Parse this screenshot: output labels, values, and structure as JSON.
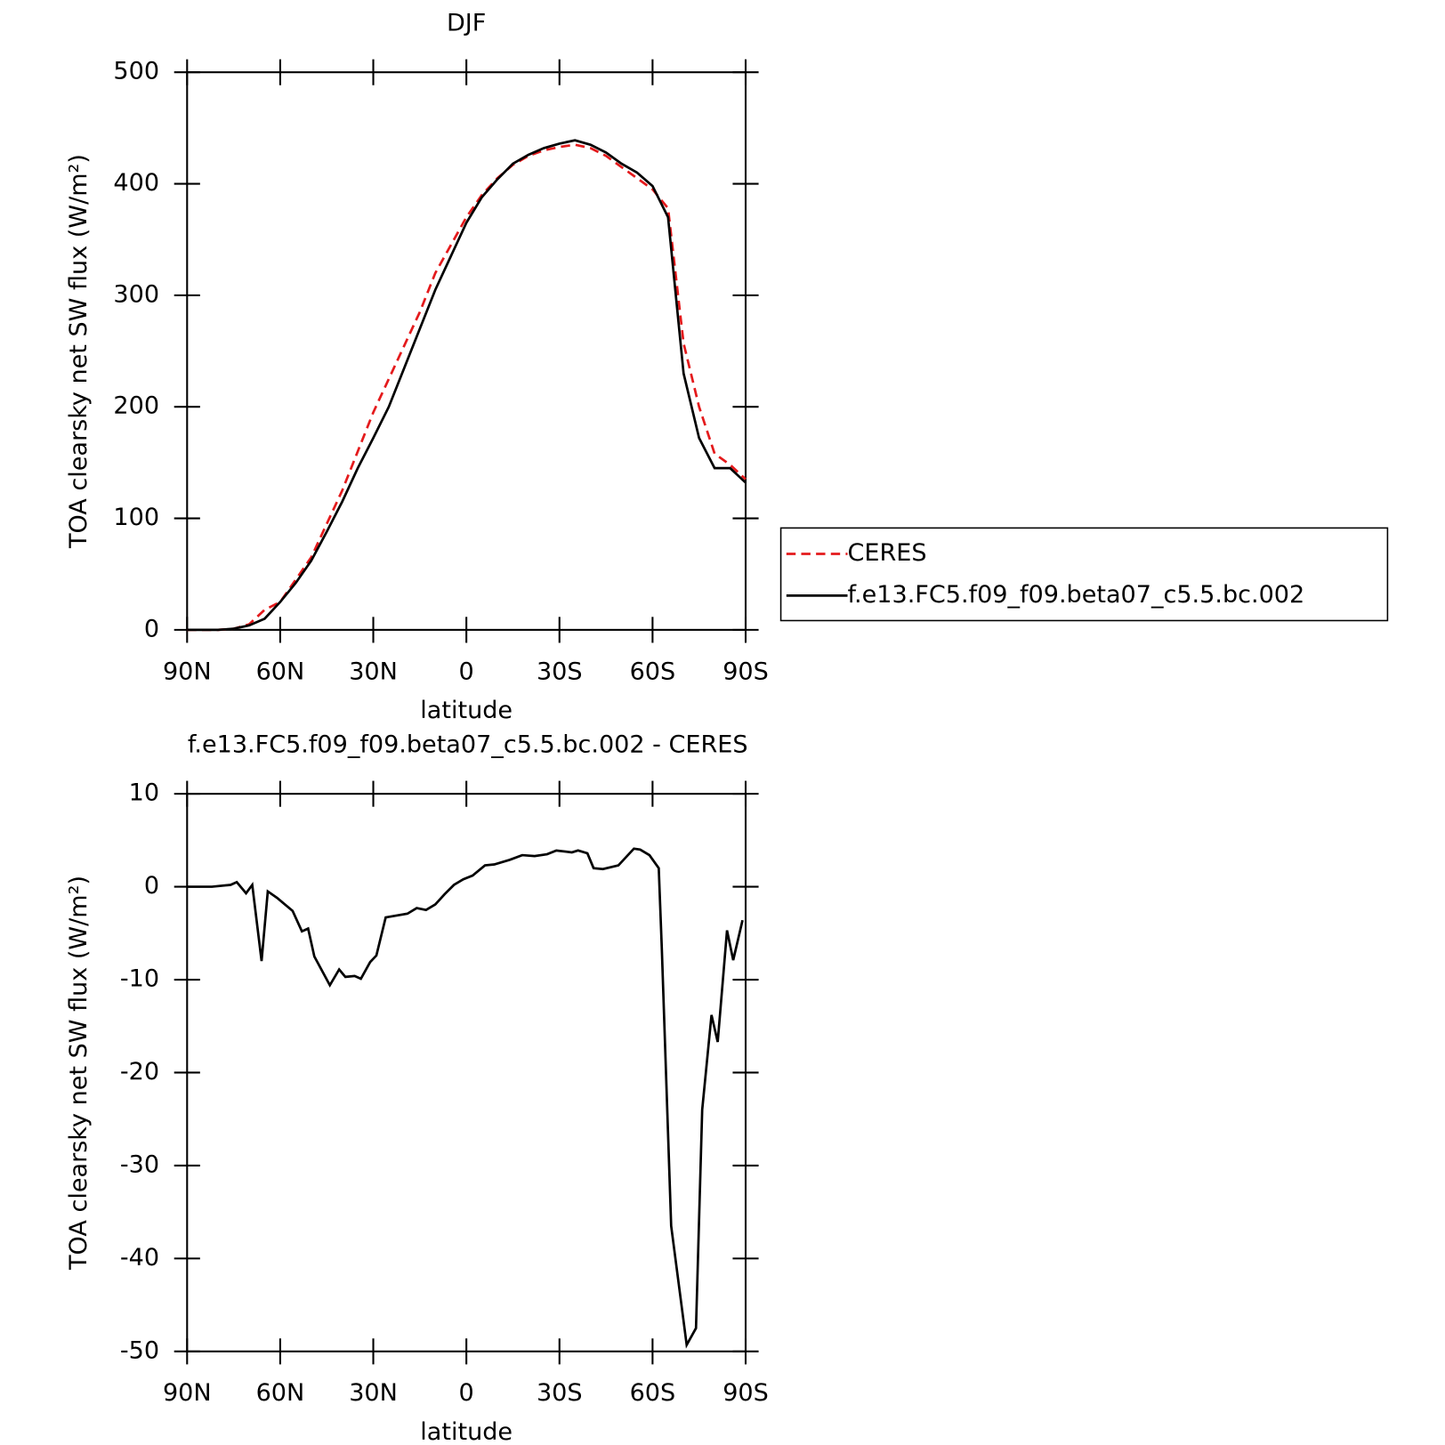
{
  "chart_data": [
    {
      "type": "line",
      "title": "DJF",
      "xlabel": "latitude",
      "ylabel": "TOA clearsky net SW flux (W/m²)",
      "xlim": [
        90,
        -90
      ],
      "xticks": [
        {
          "value": 90,
          "label": "90N"
        },
        {
          "value": 60,
          "label": "60N"
        },
        {
          "value": 30,
          "label": "30N"
        },
        0,
        {
          "value": -30,
          "label": "30S"
        },
        {
          "value": -60,
          "label": "60S"
        },
        {
          "value": -90,
          "label": "90S"
        }
      ],
      "ylim": [
        0,
        500
      ],
      "yticks": [
        0,
        100,
        200,
        300,
        400,
        500
      ],
      "x": [
        90,
        85,
        80,
        75,
        70,
        65,
        60,
        55,
        50,
        45,
        40,
        35,
        30,
        25,
        20,
        15,
        10,
        5,
        0,
        -5,
        -10,
        -15,
        -20,
        -25,
        -30,
        -35,
        -40,
        -45,
        -50,
        -55,
        -60,
        -65,
        -70,
        -75,
        -80,
        -85,
        -90
      ],
      "series": [
        {
          "name": "CERES",
          "color": "#e41a1c",
          "linestyle": "dashed",
          "values": [
            0,
            0,
            0,
            1,
            5,
            18,
            25,
            45,
            65,
            95,
            125,
            160,
            195,
            225,
            255,
            285,
            320,
            345,
            370,
            390,
            405,
            417,
            425,
            430,
            433,
            435,
            432,
            425,
            415,
            405,
            395,
            378,
            257,
            200,
            158,
            148,
            135
          ]
        },
        {
          "name": "f.e13.FC5.f09_f09.beta07_c5.5.bc.002",
          "color": "#000000",
          "linestyle": "solid",
          "values": [
            0,
            0,
            0,
            1,
            4,
            10,
            25,
            42,
            62,
            88,
            115,
            145,
            172,
            200,
            235,
            270,
            305,
            335,
            365,
            388,
            404,
            418,
            426,
            432,
            436,
            439,
            435,
            428,
            418,
            410,
            398,
            370,
            230,
            172,
            145,
            145,
            132
          ]
        }
      ],
      "legend": "right"
    },
    {
      "type": "line",
      "title": "f.e13.FC5.f09_f09.beta07_c5.5.bc.002 - CERES",
      "xlabel": "latitude",
      "ylabel": "TOA clearsky net SW flux (W/m²)",
      "xlim": [
        90,
        -90
      ],
      "xticks": [
        {
          "value": 90,
          "label": "90N"
        },
        {
          "value": 60,
          "label": "60N"
        },
        {
          "value": 30,
          "label": "30N"
        },
        0,
        {
          "value": -30,
          "label": "30S"
        },
        {
          "value": -60,
          "label": "60S"
        },
        {
          "value": -90,
          "label": "90S"
        }
      ],
      "ylim": [
        -50,
        10
      ],
      "yticks": [
        -50,
        -40,
        -30,
        -20,
        -10,
        0,
        10
      ],
      "x": [
        90,
        82,
        76,
        74,
        71,
        69,
        66,
        64,
        61,
        56,
        53,
        51,
        49,
        44,
        41,
        39,
        36,
        34,
        31,
        29,
        26,
        19,
        16,
        13,
        10,
        7,
        4,
        1,
        -2,
        -6,
        -9,
        -14,
        -18,
        -22,
        -26,
        -29,
        -34,
        -36,
        -39,
        -41,
        -44,
        -49,
        -54,
        -56,
        -59,
        -62,
        -63,
        -66,
        -71,
        -74,
        -76,
        -79,
        -81,
        -84,
        -86,
        -89
      ],
      "series": [
        {
          "name": "f.e13.FC5.f09_f09.beta07_c5.5.bc.002 - CERES",
          "color": "#000000",
          "values": [
            0,
            0,
            0.2,
            0.5,
            -0.7,
            0.2,
            -8,
            -0.5,
            -1.2,
            -2.6,
            -4.8,
            -4.5,
            -7.5,
            -10.6,
            -8.9,
            -9.7,
            -9.6,
            -9.9,
            -8.1,
            -7.4,
            -3.3,
            -2.9,
            -2.3,
            -2.5,
            -1.9,
            -0.8,
            0.2,
            0.8,
            1.2,
            2.3,
            2.4,
            2.9,
            3.4,
            3.3,
            3.5,
            3.9,
            3.7,
            3.9,
            3.6,
            2.0,
            1.9,
            2.3,
            4.1,
            4.0,
            3.4,
            2.0,
            -6.8,
            -36.5,
            -49.3,
            -47.5,
            -24,
            -13.8,
            -16.7,
            -4.7,
            -7.9,
            -3.6
          ]
        }
      ]
    }
  ]
}
